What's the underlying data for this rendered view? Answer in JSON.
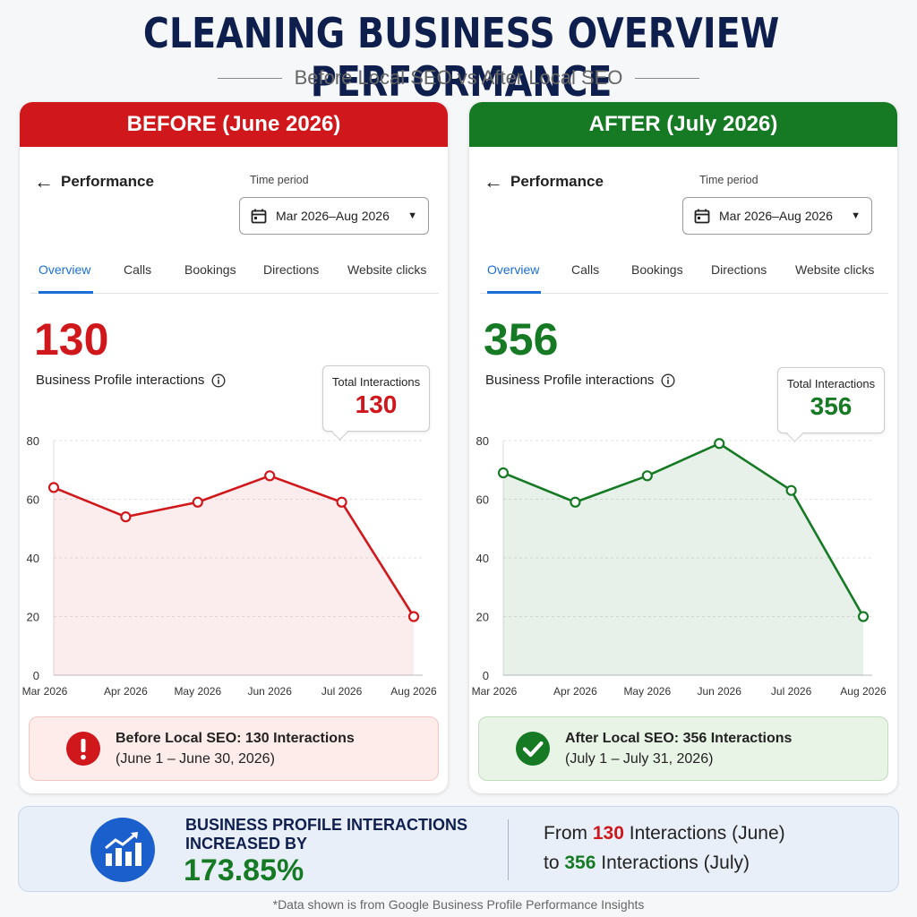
{
  "header": {
    "title": "CLEANING BUSINESS OVERVIEW PERFORMANCE",
    "subtitle": "Before Local SEO vs After Local SEO"
  },
  "before": {
    "banner": "BEFORE (June 2026)",
    "performance_label": "Performance",
    "time_period_label": "Time period",
    "time_period_value": "Mar 2026–Aug 2026",
    "tabs": [
      "Overview",
      "Calls",
      "Bookings",
      "Directions",
      "Website clicks"
    ],
    "active_tab": "Overview",
    "total": "130",
    "metric_label": "Business Profile interactions",
    "tooltip_label": "Total Interactions",
    "tooltip_value": "130",
    "summary_title": "Before Local SEO: 130 Interactions",
    "summary_dates": "(June 1 – June 30, 2026)",
    "accent": "#d0171b"
  },
  "after": {
    "banner": "AFTER (July 2026)",
    "performance_label": "Performance",
    "time_period_label": "Time period",
    "time_period_value": "Mar 2026–Aug 2026",
    "tabs": [
      "Overview",
      "Calls",
      "Bookings",
      "Directions",
      "Website clicks"
    ],
    "active_tab": "Overview",
    "total": "356",
    "metric_label": "Business Profile interactions",
    "tooltip_label": "Total Interactions",
    "tooltip_value": "356",
    "summary_title": "After Local SEO: 356 Interactions",
    "summary_dates": "(July 1 – July 31, 2026)",
    "accent": "#167a25"
  },
  "bottom": {
    "headline": "BUSINESS PROFILE INTERACTIONS INCREASED BY",
    "percent": "173.85%",
    "from_prefix": "From",
    "from_value": "130",
    "from_suffix": "Interactions (June)",
    "to_prefix": "to",
    "to_value": "356",
    "to_suffix": "Interactions (July)"
  },
  "footnote": "*Data shown is from Google Business Profile Performance Insights",
  "chart_data": [
    {
      "type": "area",
      "categories": [
        "Mar 2026",
        "Apr 2026",
        "May 2026",
        "Jun 2026",
        "Jul 2026",
        "Aug 2026"
      ],
      "values": [
        64,
        54,
        59,
        68,
        59,
        20
      ],
      "ylim": [
        0,
        80
      ],
      "yticks": [
        0,
        20,
        40,
        60,
        80
      ],
      "grid": true,
      "color": "#d0171b"
    },
    {
      "type": "area",
      "categories": [
        "Mar 2026",
        "Apr 2026",
        "May 2026",
        "Jun 2026",
        "Jul 2026",
        "Aug 2026"
      ],
      "values": [
        69,
        59,
        68,
        79,
        63,
        20
      ],
      "ylim": [
        0,
        80
      ],
      "yticks": [
        0,
        20,
        40,
        60,
        80
      ],
      "grid": true,
      "color": "#167a25"
    }
  ]
}
